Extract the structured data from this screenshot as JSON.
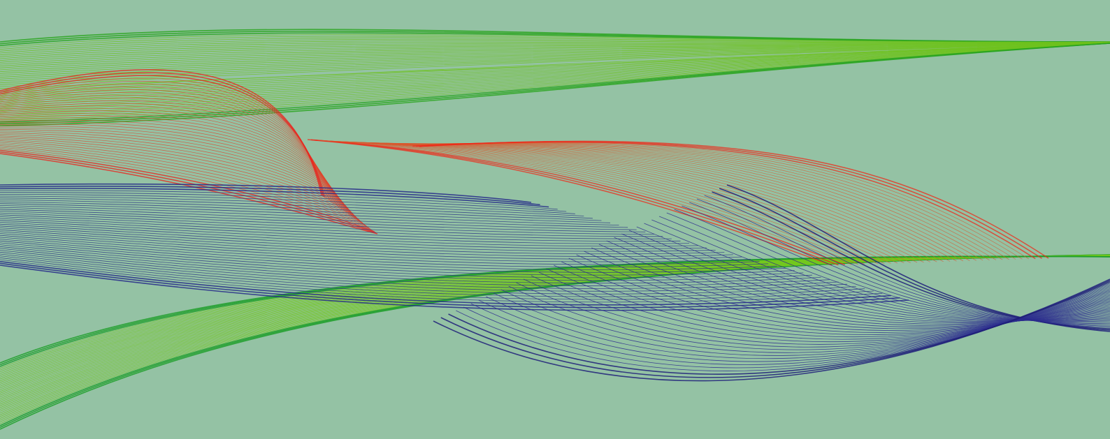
{
  "artwork": {
    "kind": "abstract string-art ribbons",
    "background_color": "#94c2a4",
    "ribbons": [
      {
        "name": "green-ribbon-upper",
        "color": "#6ec21e",
        "accent": "#2aa41e",
        "line_count": 46
      },
      {
        "name": "green-ribbon-lower",
        "color": "#73c81c",
        "accent": "#1f9f2a",
        "line_count": 38
      },
      {
        "name": "red-ribbon-left",
        "color": "#e0442a",
        "accent": "#e8261e",
        "line_count": 40
      },
      {
        "name": "red-ribbon-right",
        "color": "#d9582e",
        "accent": "#ee2a1a",
        "line_count": 34
      },
      {
        "name": "blue-ribbon-left",
        "color": "#2f3a86",
        "accent": "#262a8a",
        "line_count": 44
      },
      {
        "name": "blue-ribbon-right",
        "color": "#2c2c8e",
        "accent": "#20207a",
        "line_count": 40
      }
    ]
  }
}
